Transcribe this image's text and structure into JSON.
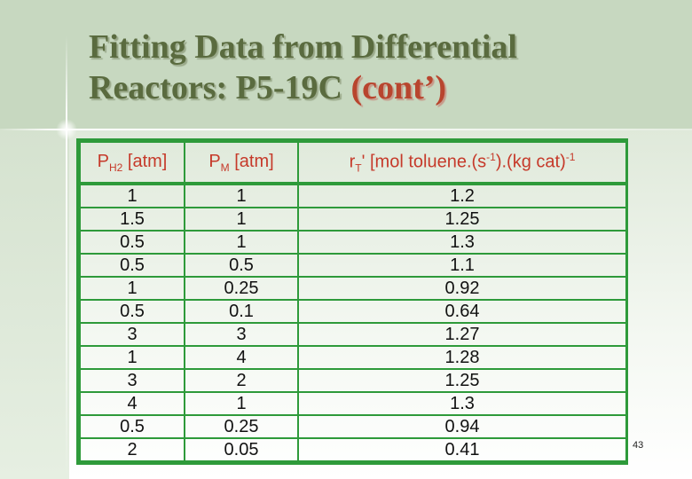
{
  "slide": {
    "title_line1": "Fitting Data from Differential",
    "title_line2_main": "Reactors: P5-19C ",
    "title_line2_accent": "(cont’)",
    "page_number": "43"
  },
  "table": {
    "headers": {
      "h1_main": "P",
      "h1_sub": "H2",
      "h1_rest": " [atm]",
      "h2_main": "P",
      "h2_sub": "M",
      "h2_rest": " [atm]",
      "h3_main": "r",
      "h3_sub": "T",
      "h3_a": "' [mol toluene.(s",
      "h3_sup1": "-1",
      "h3_b": ").(kg cat)",
      "h3_sup2": "-1"
    },
    "rows": [
      [
        "1",
        "1",
        "1.2"
      ],
      [
        "1.5",
        "1",
        "1.25"
      ],
      [
        "0.5",
        "1",
        "1.3"
      ],
      [
        "0.5",
        "0.5",
        "1.1"
      ],
      [
        "1",
        "0.25",
        "0.92"
      ],
      [
        "0.5",
        "0.1",
        "0.64"
      ],
      [
        "3",
        "3",
        "1.27"
      ],
      [
        "1",
        "4",
        "1.28"
      ],
      [
        "3",
        "2",
        "1.25"
      ],
      [
        "4",
        "1",
        "1.3"
      ],
      [
        "0.5",
        "0.25",
        "0.94"
      ],
      [
        "2",
        "0.05",
        "0.41"
      ]
    ]
  }
}
